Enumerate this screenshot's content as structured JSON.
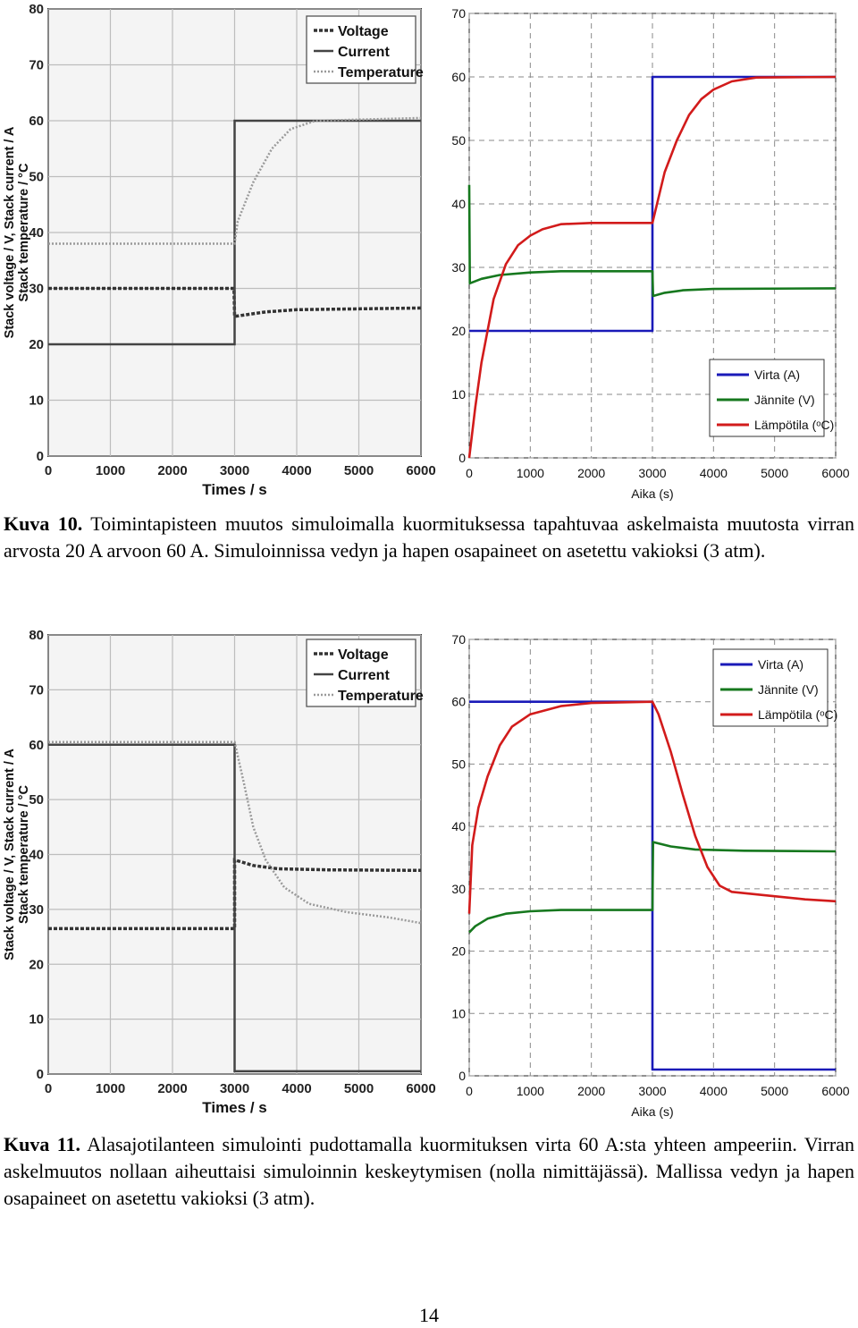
{
  "figures": [
    {
      "caption_label": "Kuva 10.",
      "caption_text": " Toimintapisteen muutos simuloimalla kuormituksessa tapahtuvaa askelmaista muutosta virran arvosta 20 A arvoon 60 A. Simuloinnissa vedyn ja hapen osapaineet on asetettu vakioksi (3 atm)."
    },
    {
      "caption_label": "Kuva 11.",
      "caption_text": " Alasajotilanteen simulointi pudottamalla kuormituksen virta 60 A:sta yhteen ampeeriin. Virran askelmuutos nollaan aiheuttaisi simuloinnin keskeytymisen (nolla nimittäjässä). Mallissa vedyn ja hapen osapaineet on asetettu vakioksi (3 atm)."
    }
  ],
  "page_number": "14",
  "colors": {
    "current_blue": "#1a1ab8",
    "voltage_green": "#16781e",
    "temp_red": "#d21b1b",
    "grid": "#8a8a8a"
  },
  "chart_data": [
    {
      "type": "line",
      "xlabel": "Times / s",
      "ylabel": "Stack voltage / V, Stack current / A",
      "ylabel2": "Stack temperature / °C",
      "xlim": [
        0,
        6000
      ],
      "ylim": [
        0,
        80
      ],
      "xticks": [
        "0",
        "1000",
        "2000",
        "3000",
        "4000",
        "5000",
        "6000"
      ],
      "yticks": [
        "0",
        "10",
        "20",
        "30",
        "40",
        "50",
        "60",
        "70",
        "80"
      ],
      "legend": "top-right",
      "series": [
        {
          "name": "Voltage",
          "style": "dashed",
          "points": [
            [
              0,
              30
            ],
            [
              2990,
              30
            ],
            [
              3000,
              25
            ],
            [
              3500,
              25.8
            ],
            [
              4000,
              26.2
            ],
            [
              6000,
              26.5
            ]
          ]
        },
        {
          "name": "Current",
          "style": "solid",
          "points": [
            [
              0,
              20
            ],
            [
              3000,
              20
            ],
            [
              3000,
              60
            ],
            [
              6000,
              60
            ]
          ]
        },
        {
          "name": "Temperature",
          "style": "dotted",
          "points": [
            [
              0,
              38
            ],
            [
              3000,
              38
            ],
            [
              3050,
              42
            ],
            [
              3300,
              49
            ],
            [
              3600,
              55
            ],
            [
              3900,
              58.5
            ],
            [
              4300,
              60
            ],
            [
              6000,
              60.5
            ]
          ]
        }
      ]
    },
    {
      "type": "line",
      "xlabel": "Aika (s)",
      "xlim": [
        0,
        6000
      ],
      "ylim": [
        0,
        70
      ],
      "xticks": [
        "0",
        "1000",
        "2000",
        "3000",
        "4000",
        "5000",
        "6000"
      ],
      "yticks": [
        "0",
        "10",
        "20",
        "30",
        "40",
        "50",
        "60",
        "70"
      ],
      "legend": "bottom-right",
      "series": [
        {
          "name": "Virta (A)",
          "color": "blue",
          "points": [
            [
              0,
              20
            ],
            [
              3000,
              20
            ],
            [
              3000,
              60
            ],
            [
              6000,
              60
            ]
          ]
        },
        {
          "name": "Jännite (V)",
          "color": "green",
          "points": [
            [
              0,
              43
            ],
            [
              10,
              27.5
            ],
            [
              200,
              28.2
            ],
            [
              500,
              28.8
            ],
            [
              1000,
              29.2
            ],
            [
              1500,
              29.4
            ],
            [
              3000,
              29.4
            ],
            [
              3010,
              25.5
            ],
            [
              3200,
              26
            ],
            [
              3500,
              26.4
            ],
            [
              4000,
              26.6
            ],
            [
              6000,
              26.7
            ]
          ]
        },
        {
          "name": "Lämpötila (ᵒC)",
          "color": "red",
          "points": [
            [
              0,
              0
            ],
            [
              100,
              8
            ],
            [
              200,
              15
            ],
            [
              400,
              25
            ],
            [
              600,
              30.5
            ],
            [
              800,
              33.5
            ],
            [
              1000,
              35
            ],
            [
              1200,
              36
            ],
            [
              1500,
              36.8
            ],
            [
              2000,
              37
            ],
            [
              3000,
              37
            ],
            [
              3200,
              45
            ],
            [
              3400,
              50
            ],
            [
              3600,
              54
            ],
            [
              3800,
              56.5
            ],
            [
              4000,
              58
            ],
            [
              4300,
              59.3
            ],
            [
              4700,
              59.9
            ],
            [
              6000,
              60
            ]
          ]
        }
      ]
    },
    {
      "type": "line",
      "xlabel": "Times / s",
      "ylabel": "Stack voltage / V, Stack current / A",
      "ylabel2": "Stack temperature / °C",
      "xlim": [
        0,
        6000
      ],
      "ylim": [
        0,
        80
      ],
      "xticks": [
        "0",
        "1000",
        "2000",
        "3000",
        "4000",
        "5000",
        "6000"
      ],
      "yticks": [
        "0",
        "10",
        "20",
        "30",
        "40",
        "50",
        "60",
        "70",
        "80"
      ],
      "legend": "top-right",
      "series": [
        {
          "name": "Voltage",
          "style": "dashed",
          "points": [
            [
              0,
              26.5
            ],
            [
              3000,
              26.5
            ],
            [
              3000,
              39
            ],
            [
              3300,
              38
            ],
            [
              3700,
              37.4
            ],
            [
              4500,
              37.2
            ],
            [
              6000,
              37.1
            ]
          ]
        },
        {
          "name": "Current",
          "style": "solid",
          "points": [
            [
              0,
              60
            ],
            [
              3000,
              60
            ],
            [
              3000,
              0.5
            ],
            [
              6000,
              0.5
            ]
          ]
        },
        {
          "name": "Temperature",
          "style": "dotted",
          "points": [
            [
              0,
              60.5
            ],
            [
              3000,
              60.5
            ],
            [
              3150,
              53
            ],
            [
              3300,
              45
            ],
            [
              3500,
              39
            ],
            [
              3800,
              34
            ],
            [
              4200,
              31
            ],
            [
              4800,
              29.5
            ],
            [
              5500,
              28.5
            ],
            [
              6000,
              27.5
            ]
          ]
        }
      ]
    },
    {
      "type": "line",
      "xlabel": "Aika (s)",
      "xlim": [
        0,
        6000
      ],
      "ylim": [
        0,
        70
      ],
      "xticks": [
        "0",
        "1000",
        "2000",
        "3000",
        "4000",
        "5000",
        "6000"
      ],
      "yticks": [
        "0",
        "10",
        "20",
        "30",
        "40",
        "50",
        "60",
        "70"
      ],
      "legend": "top-right",
      "series": [
        {
          "name": "Virta (A)",
          "color": "blue",
          "points": [
            [
              0,
              60
            ],
            [
              3000,
              60
            ],
            [
              3000,
              1
            ],
            [
              6000,
              1
            ]
          ]
        },
        {
          "name": "Jännite (V)",
          "color": "green",
          "points": [
            [
              0,
              23
            ],
            [
              100,
              24
            ],
            [
              300,
              25.2
            ],
            [
              600,
              26
            ],
            [
              1000,
              26.4
            ],
            [
              1500,
              26.6
            ],
            [
              3000,
              26.6
            ],
            [
              3010,
              37.5
            ],
            [
              3300,
              36.8
            ],
            [
              3700,
              36.3
            ],
            [
              4500,
              36.1
            ],
            [
              6000,
              36
            ]
          ]
        },
        {
          "name": "Lämpötila (ᵒC)",
          "color": "red",
          "points": [
            [
              0,
              26
            ],
            [
              50,
              37
            ],
            [
              150,
              43
            ],
            [
              300,
              48
            ],
            [
              500,
              53
            ],
            [
              700,
              56
            ],
            [
              1000,
              58
            ],
            [
              1500,
              59.3
            ],
            [
              2000,
              59.8
            ],
            [
              3000,
              60
            ],
            [
              3100,
              58
            ],
            [
              3300,
              52
            ],
            [
              3500,
              45
            ],
            [
              3700,
              38.5
            ],
            [
              3900,
              33.5
            ],
            [
              4100,
              30.5
            ],
            [
              4300,
              29.5
            ],
            [
              4800,
              29
            ],
            [
              5500,
              28.3
            ],
            [
              6000,
              28
            ]
          ]
        }
      ]
    }
  ]
}
